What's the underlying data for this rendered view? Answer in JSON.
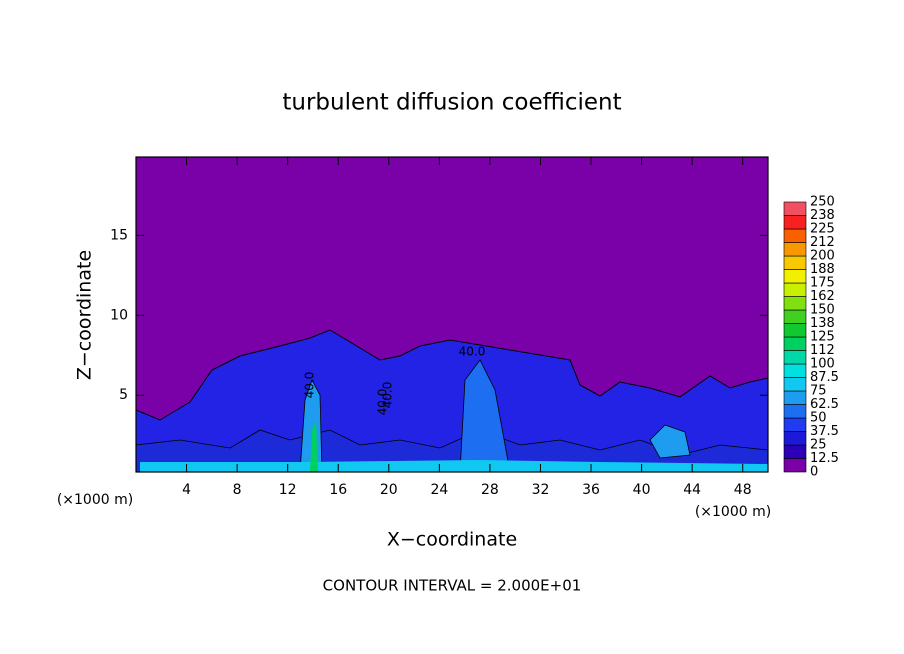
{
  "chart_data": {
    "type": "contour",
    "title": "turbulent diffusion coefficient",
    "xlabel": "X−coordinate",
    "ylabel": "Z−coordinate",
    "x_unit": "(×1000 m)",
    "footer": "CONTOUR INTERVAL = 2.000E+01",
    "xlim": [
      0,
      50
    ],
    "ylim": [
      0.2,
      19.9
    ],
    "xticks": [
      4,
      8,
      12,
      16,
      20,
      24,
      28,
      32,
      36,
      40,
      44,
      48
    ],
    "yticks": [
      5,
      10,
      15
    ],
    "contour_labels": [
      "40.0",
      "40.0",
      "40.0",
      "40.0"
    ],
    "colorbar": {
      "levels": [
        0,
        12.5,
        25,
        37.5,
        50,
        62.5,
        75,
        87.5,
        100,
        112,
        125,
        138,
        150,
        162,
        175,
        188,
        200,
        212,
        225,
        238,
        250
      ],
      "colors": [
        "#7a00a8",
        "#2a00b8",
        "#1a1ad8",
        "#1f3cf0",
        "#1e6ef2",
        "#1e9cf0",
        "#10c8f0",
        "#00e0e0",
        "#00d8a8",
        "#00d060",
        "#10c830",
        "#40d020",
        "#80e010",
        "#c8f000",
        "#f0f000",
        "#f8c800",
        "#f89800",
        "#f86000",
        "#f82020",
        "#f05060"
      ]
    }
  }
}
